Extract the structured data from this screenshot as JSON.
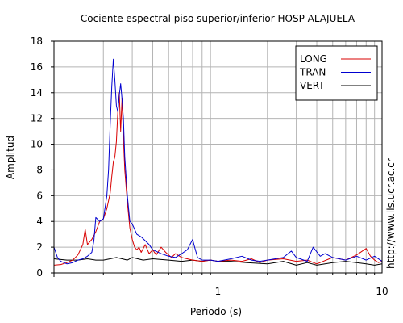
{
  "chart_data": {
    "type": "line",
    "title": "Cociente espectral piso superior/inferior  HOSP ALAJUELA",
    "xlabel": "Periodo (s)",
    "ylabel": "Amplitud",
    "xscale": "log",
    "xlim": [
      0.1,
      10
    ],
    "ylim": [
      0,
      18
    ],
    "xticks": [
      1,
      10
    ],
    "xtick_labels": [
      "1",
      "10"
    ],
    "yticks": [
      0,
      2,
      4,
      6,
      8,
      10,
      12,
      14,
      16,
      18
    ],
    "grid": true,
    "legend_position": "top-right",
    "watermark": "http://www.lis.ucr.ac.cr",
    "series": [
      {
        "name": "LONG",
        "color": "#d80000",
        "points": [
          [
            0.1,
            0.6
          ],
          [
            0.11,
            0.65
          ],
          [
            0.12,
            0.8
          ],
          [
            0.13,
            1.0
          ],
          [
            0.14,
            1.4
          ],
          [
            0.15,
            2.2
          ],
          [
            0.155,
            3.4
          ],
          [
            0.16,
            2.2
          ],
          [
            0.17,
            2.6
          ],
          [
            0.18,
            3.2
          ],
          [
            0.19,
            4.0
          ],
          [
            0.2,
            4.2
          ],
          [
            0.21,
            5.0
          ],
          [
            0.22,
            6.2
          ],
          [
            0.225,
            7.5
          ],
          [
            0.23,
            8.6
          ],
          [
            0.235,
            9.0
          ],
          [
            0.24,
            10.2
          ],
          [
            0.245,
            12.5
          ],
          [
            0.25,
            14.0
          ],
          [
            0.255,
            11.0
          ],
          [
            0.26,
            13.6
          ],
          [
            0.265,
            10.5
          ],
          [
            0.27,
            8.0
          ],
          [
            0.28,
            5.5
          ],
          [
            0.29,
            3.5
          ],
          [
            0.3,
            2.6
          ],
          [
            0.31,
            2.0
          ],
          [
            0.32,
            1.8
          ],
          [
            0.33,
            2.0
          ],
          [
            0.34,
            1.6
          ],
          [
            0.36,
            2.2
          ],
          [
            0.38,
            1.5
          ],
          [
            0.4,
            1.8
          ],
          [
            0.42,
            1.4
          ],
          [
            0.45,
            2.0
          ],
          [
            0.48,
            1.6
          ],
          [
            0.52,
            1.2
          ],
          [
            0.55,
            1.5
          ],
          [
            0.6,
            1.2
          ],
          [
            0.7,
            1.0
          ],
          [
            0.8,
            0.9
          ],
          [
            0.9,
            1.0
          ],
          [
            1.0,
            0.9
          ],
          [
            1.2,
            1.0
          ],
          [
            1.4,
            0.9
          ],
          [
            1.6,
            1.1
          ],
          [
            1.8,
            0.8
          ],
          [
            2.0,
            1.0
          ],
          [
            2.5,
            1.1
          ],
          [
            3.0,
            0.9
          ],
          [
            3.5,
            1.0
          ],
          [
            4.0,
            0.7
          ],
          [
            5.0,
            1.2
          ],
          [
            6.0,
            1.0
          ],
          [
            7.0,
            1.4
          ],
          [
            8.0,
            1.9
          ],
          [
            8.5,
            1.3
          ],
          [
            9.0,
            1.0
          ],
          [
            9.5,
            0.8
          ],
          [
            10.0,
            0.9
          ]
        ]
      },
      {
        "name": "TRAN",
        "color": "#0000d0",
        "points": [
          [
            0.1,
            2.0
          ],
          [
            0.105,
            1.2
          ],
          [
            0.11,
            0.9
          ],
          [
            0.12,
            0.7
          ],
          [
            0.13,
            0.8
          ],
          [
            0.14,
            1.0
          ],
          [
            0.15,
            1.1
          ],
          [
            0.16,
            1.3
          ],
          [
            0.17,
            1.6
          ],
          [
            0.175,
            2.5
          ],
          [
            0.18,
            4.3
          ],
          [
            0.19,
            4.0
          ],
          [
            0.2,
            4.2
          ],
          [
            0.21,
            6.0
          ],
          [
            0.215,
            8.0
          ],
          [
            0.22,
            11.5
          ],
          [
            0.225,
            14.5
          ],
          [
            0.23,
            16.6
          ],
          [
            0.235,
            15.0
          ],
          [
            0.24,
            13.0
          ],
          [
            0.245,
            12.5
          ],
          [
            0.25,
            13.8
          ],
          [
            0.255,
            14.7
          ],
          [
            0.26,
            13.5
          ],
          [
            0.265,
            12.0
          ],
          [
            0.27,
            9.0
          ],
          [
            0.28,
            6.0
          ],
          [
            0.29,
            4.0
          ],
          [
            0.3,
            3.8
          ],
          [
            0.32,
            3.0
          ],
          [
            0.34,
            2.8
          ],
          [
            0.36,
            2.5
          ],
          [
            0.38,
            2.2
          ],
          [
            0.4,
            1.8
          ],
          [
            0.45,
            1.5
          ],
          [
            0.5,
            1.3
          ],
          [
            0.55,
            1.2
          ],
          [
            0.6,
            1.5
          ],
          [
            0.65,
            1.8
          ],
          [
            0.7,
            2.6
          ],
          [
            0.72,
            2.0
          ],
          [
            0.75,
            1.2
          ],
          [
            0.8,
            1.0
          ],
          [
            0.9,
            1.0
          ],
          [
            1.0,
            0.9
          ],
          [
            1.2,
            1.1
          ],
          [
            1.4,
            1.3
          ],
          [
            1.6,
            1.0
          ],
          [
            1.8,
            0.9
          ],
          [
            2.0,
            1.0
          ],
          [
            2.5,
            1.2
          ],
          [
            2.8,
            1.7
          ],
          [
            3.0,
            1.2
          ],
          [
            3.5,
            0.9
          ],
          [
            3.8,
            2.0
          ],
          [
            4.2,
            1.3
          ],
          [
            4.5,
            1.5
          ],
          [
            5.0,
            1.2
          ],
          [
            6.0,
            1.0
          ],
          [
            7.0,
            1.3
          ],
          [
            8.0,
            1.0
          ],
          [
            9.0,
            1.3
          ],
          [
            10.0,
            0.9
          ]
        ]
      },
      {
        "name": "VERT",
        "color": "#000000",
        "points": [
          [
            0.1,
            1.1
          ],
          [
            0.12,
            1.0
          ],
          [
            0.14,
            1.0
          ],
          [
            0.16,
            1.1
          ],
          [
            0.18,
            1.0
          ],
          [
            0.2,
            1.0
          ],
          [
            0.22,
            1.1
          ],
          [
            0.24,
            1.2
          ],
          [
            0.26,
            1.1
          ],
          [
            0.28,
            1.0
          ],
          [
            0.3,
            1.2
          ],
          [
            0.35,
            1.0
          ],
          [
            0.4,
            1.1
          ],
          [
            0.5,
            1.0
          ],
          [
            0.6,
            0.9
          ],
          [
            0.7,
            1.0
          ],
          [
            0.8,
            0.9
          ],
          [
            0.9,
            1.0
          ],
          [
            1.0,
            0.9
          ],
          [
            1.2,
            0.9
          ],
          [
            1.5,
            0.8
          ],
          [
            2.0,
            0.7
          ],
          [
            2.5,
            0.9
          ],
          [
            3.0,
            0.6
          ],
          [
            3.5,
            0.8
          ],
          [
            4.0,
            0.6
          ],
          [
            5.0,
            0.8
          ],
          [
            6.0,
            0.9
          ],
          [
            7.0,
            0.8
          ],
          [
            8.0,
            0.7
          ],
          [
            9.0,
            0.6
          ],
          [
            10.0,
            0.7
          ]
        ]
      }
    ]
  }
}
